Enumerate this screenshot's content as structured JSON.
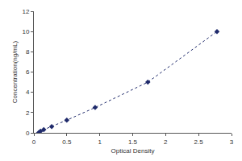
{
  "chart_data": {
    "type": "scatter",
    "x_label": "Optical Density",
    "y_label": "Concentration(ng/mL)",
    "x": [
      0.07,
      0.1,
      0.15,
      0.27,
      0.5,
      0.93,
      1.73,
      2.78
    ],
    "values": [
      0,
      0.16,
      0.31,
      0.625,
      1.25,
      2.5,
      5,
      10
    ],
    "color": "#1f2a6b",
    "marker": "diamond",
    "line_style": "dotted",
    "xlim": [
      0,
      3
    ],
    "xticks": [
      0,
      0.5,
      1,
      1.5,
      2,
      2.5,
      3
    ],
    "ylim": [
      0,
      12
    ],
    "yticks": [
      0,
      2,
      4,
      6,
      8,
      10,
      12
    ],
    "grid": false
  }
}
